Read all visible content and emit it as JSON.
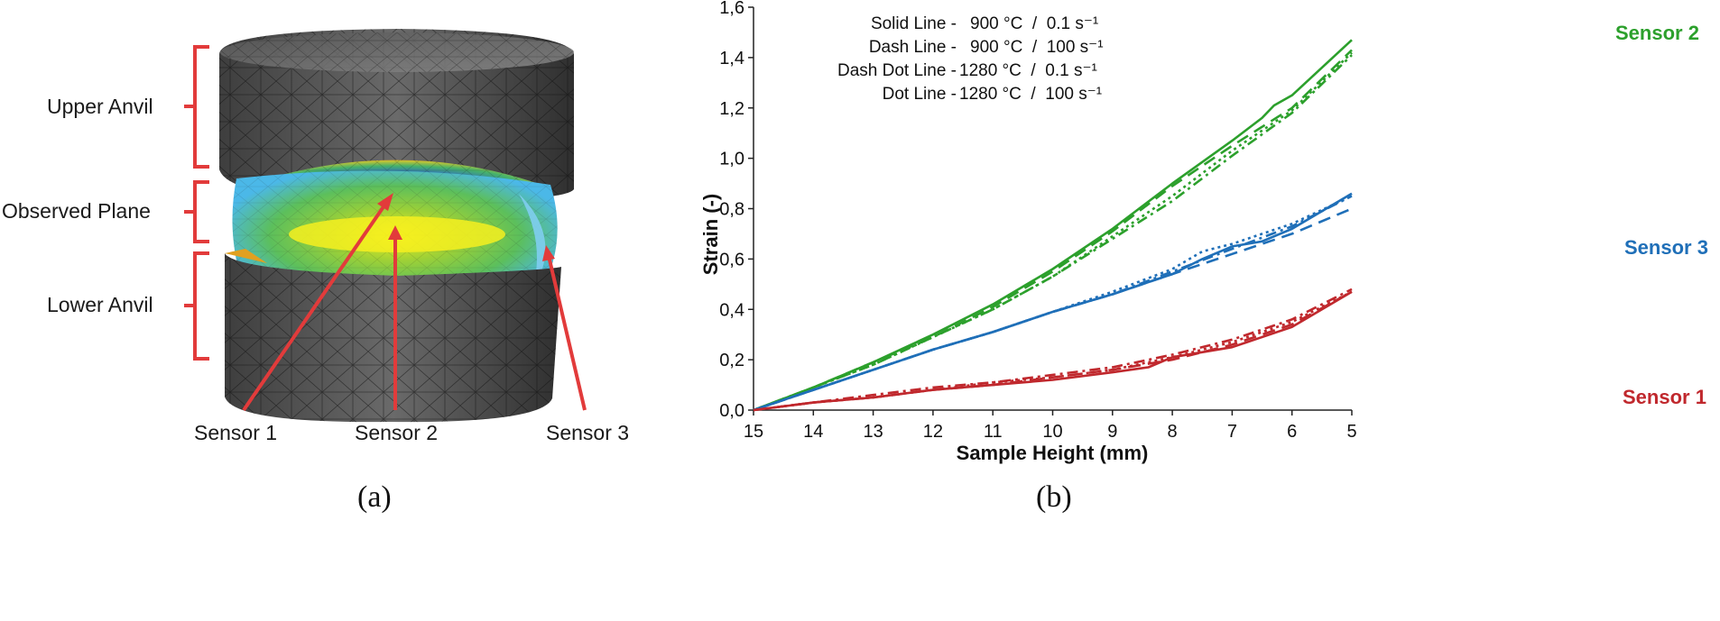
{
  "panel_a": {
    "caption": "(a)",
    "labels": {
      "upper_anvil": "Upper Anvil",
      "observed_plane": "Observed Plane",
      "lower_anvil": "Lower Anvil",
      "sensor_1": "Sensor 1",
      "sensor_2": "Sensor 2",
      "sensor_3": "Sensor 3"
    }
  },
  "panel_b": {
    "caption": "(b)"
  },
  "chart_data": {
    "type": "line",
    "xlabel": "Sample Height (mm)",
    "ylabel": "Strain (-)",
    "xlim": [
      15,
      5
    ],
    "ylim": [
      0,
      1.6
    ],
    "x_ticks": [
      "15",
      "14",
      "13",
      "12",
      "11",
      "10",
      "9",
      "8",
      "7",
      "6",
      "5"
    ],
    "y_ticks": [
      "0,0",
      "0,2",
      "0,4",
      "0,6",
      "0,8",
      "1,0",
      "1,2",
      "1,4",
      "1,6"
    ],
    "grid": false,
    "legend_text": [
      {
        "name": "Solid Line -",
        "cond": "900 °C  /  0.1 s⁻¹"
      },
      {
        "name": "Dash Line -",
        "cond": "900 °C  /  100 s⁻¹"
      },
      {
        "name": "Dash Dot Line -",
        "cond": "1280 °C  /  0.1 s⁻¹"
      },
      {
        "name": "Dot Line -",
        "cond": "1280 °C  /  100 s⁻¹"
      }
    ],
    "sensor_labels": [
      {
        "name": "Sensor 2",
        "color": "#2ca02c"
      },
      {
        "name": "Sensor 3",
        "color": "#1f6fb8"
      },
      {
        "name": "Sensor 1",
        "color": "#c0282d"
      }
    ],
    "series": [
      {
        "name": "Sensor 2 - 900 °C / 0.1 s⁻¹",
        "color": "#2ca02c",
        "style": "solid",
        "x": [
          15,
          14,
          13,
          12,
          11,
          10,
          9,
          8,
          7,
          6.5,
          6.3,
          6,
          5
        ],
        "y": [
          0,
          0.09,
          0.19,
          0.3,
          0.42,
          0.56,
          0.72,
          0.9,
          1.07,
          1.16,
          1.21,
          1.25,
          1.47
        ]
      },
      {
        "name": "Sensor 2 - 900 °C / 100 s⁻¹",
        "color": "#2ca02c",
        "style": "dash",
        "x": [
          15,
          14,
          13,
          12,
          11,
          10,
          9,
          8,
          7,
          6,
          5
        ],
        "y": [
          0,
          0.09,
          0.19,
          0.29,
          0.41,
          0.55,
          0.71,
          0.89,
          1.05,
          1.2,
          1.43
        ]
      },
      {
        "name": "Sensor 2 - 1280 °C / 0.1 s⁻¹",
        "color": "#2ca02c",
        "style": "dashdot",
        "x": [
          15,
          14,
          13,
          12,
          11,
          10,
          9,
          8,
          7,
          6,
          5
        ],
        "y": [
          0,
          0.09,
          0.18,
          0.29,
          0.4,
          0.53,
          0.68,
          0.83,
          1.01,
          1.18,
          1.41
        ]
      },
      {
        "name": "Sensor 2 - 1280 °C / 100 s⁻¹",
        "color": "#2ca02c",
        "style": "dot",
        "x": [
          15,
          14,
          13,
          12,
          11,
          10,
          9,
          8,
          7,
          6,
          5
        ],
        "y": [
          0,
          0.09,
          0.18,
          0.29,
          0.4,
          0.53,
          0.69,
          0.85,
          1.03,
          1.19,
          1.42
        ]
      },
      {
        "name": "Sensor 3 - 900 °C / 0.1 s⁻¹",
        "color": "#1f6fb8",
        "style": "solid",
        "x": [
          15,
          14,
          13,
          12,
          11,
          10,
          9,
          8,
          7.5,
          7,
          6.5,
          6,
          5
        ],
        "y": [
          0,
          0.08,
          0.16,
          0.24,
          0.31,
          0.39,
          0.46,
          0.54,
          0.6,
          0.65,
          0.67,
          0.72,
          0.86
        ]
      },
      {
        "name": "Sensor 3 - 900 °C / 100 s⁻¹",
        "color": "#1f6fb8",
        "style": "dash",
        "x": [
          15,
          14,
          13,
          12,
          11,
          10,
          9,
          8,
          7,
          6,
          5
        ],
        "y": [
          0,
          0.08,
          0.16,
          0.24,
          0.31,
          0.39,
          0.46,
          0.54,
          0.62,
          0.7,
          0.8
        ]
      },
      {
        "name": "Sensor 3 - 1280 °C / 0.1 s⁻¹",
        "color": "#1f6fb8",
        "style": "dashdot",
        "x": [
          15,
          14,
          13,
          12,
          11,
          10,
          9,
          8,
          7,
          6,
          5
        ],
        "y": [
          0,
          0.08,
          0.16,
          0.24,
          0.31,
          0.39,
          0.46,
          0.55,
          0.64,
          0.73,
          0.85
        ]
      },
      {
        "name": "Sensor 3 - 1280 °C / 100 s⁻¹",
        "color": "#1f6fb8",
        "style": "dot",
        "x": [
          15,
          14,
          13,
          12,
          11,
          10,
          9,
          8,
          7.5,
          7,
          6,
          5
        ],
        "y": [
          0,
          0.08,
          0.16,
          0.24,
          0.31,
          0.39,
          0.47,
          0.56,
          0.63,
          0.66,
          0.74,
          0.85
        ]
      },
      {
        "name": "Sensor 1 - 900 °C / 0.1 s⁻¹",
        "color": "#c0282d",
        "style": "solid",
        "x": [
          15,
          14,
          13,
          12,
          11,
          10,
          9,
          8.4,
          8,
          7,
          6,
          5
        ],
        "y": [
          0,
          0.03,
          0.05,
          0.08,
          0.1,
          0.12,
          0.15,
          0.17,
          0.21,
          0.25,
          0.33,
          0.47
        ]
      },
      {
        "name": "Sensor 1 - 900 °C / 100 s⁻¹",
        "color": "#c0282d",
        "style": "dash",
        "x": [
          15,
          14,
          13,
          12,
          11,
          10,
          9,
          8,
          7,
          6,
          5
        ],
        "y": [
          0,
          0.03,
          0.05,
          0.08,
          0.1,
          0.13,
          0.16,
          0.2,
          0.26,
          0.34,
          0.47
        ]
      },
      {
        "name": "Sensor 1 - 1280 °C / 0.1 s⁻¹",
        "color": "#c0282d",
        "style": "dashdot",
        "x": [
          15,
          14,
          13,
          12,
          11,
          10,
          9,
          8,
          7,
          6,
          5
        ],
        "y": [
          0,
          0.03,
          0.06,
          0.09,
          0.11,
          0.14,
          0.17,
          0.22,
          0.28,
          0.36,
          0.48
        ]
      },
      {
        "name": "Sensor 1 - 1280 °C / 100 s⁻¹",
        "color": "#c0282d",
        "style": "dot",
        "x": [
          15,
          14,
          13,
          12,
          11,
          10,
          9,
          8,
          7,
          6,
          5
        ],
        "y": [
          0,
          0.03,
          0.05,
          0.08,
          0.11,
          0.13,
          0.16,
          0.21,
          0.27,
          0.35,
          0.47
        ]
      }
    ]
  }
}
